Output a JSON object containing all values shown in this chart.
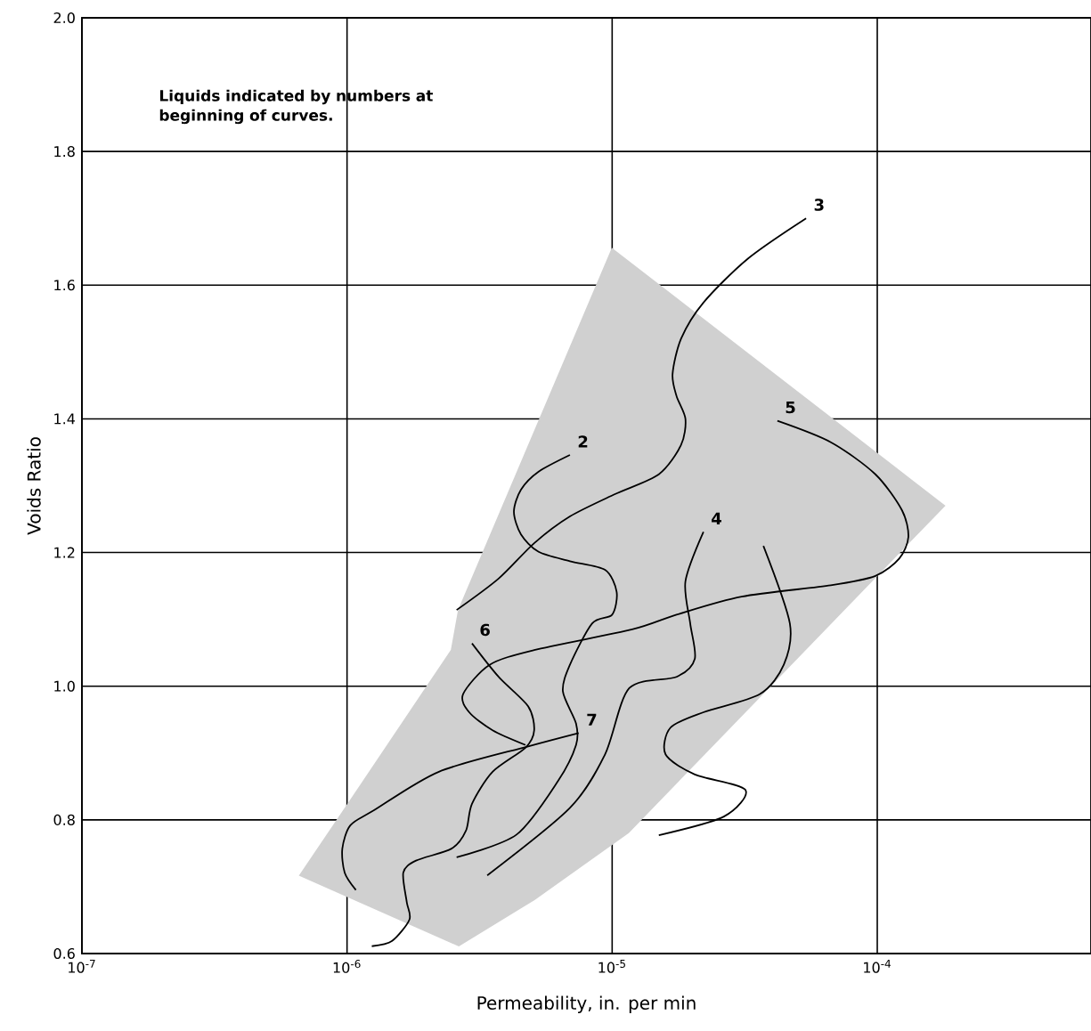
{
  "chart_data": {
    "type": "line",
    "xlabel": "Permeability, in. per min",
    "ylabel": "Voids Ratio",
    "annotations": [
      "Liquids indicated by numbers at beginning of curves."
    ],
    "log": "x",
    "grid": true,
    "marker": "none",
    "xlim": [
      1e-07,
      0.00064
    ],
    "xticks": [
      {
        "value": 1e-07,
        "label": "10$^{-7}$"
      },
      {
        "value": 1e-06,
        "label": "10$^{-6}$"
      },
      {
        "value": 1e-05,
        "label": "10$^{-5}$"
      },
      {
        "value": 0.0001,
        "label": "10$^{-4}$"
      }
    ],
    "ylim": [
      0.6,
      2.0
    ],
    "yticks": [
      {
        "value": 0.6,
        "label": "0.6"
      },
      {
        "value": 0.8,
        "label": "0.8"
      },
      {
        "value": 1.0,
        "label": "1.0"
      },
      {
        "value": 1.2,
        "label": "1.2"
      },
      {
        "value": 1.4,
        "label": "1.4"
      },
      {
        "value": 1.6,
        "label": "1.6"
      },
      {
        "value": 1.8,
        "label": "1.8"
      },
      {
        "value": 2.0,
        "label": "2.0"
      }
    ],
    "series": [
      {
        "type": "area",
        "color": "#d0d0d0",
        "x": [
          1e-05,
          0.000179,
          1.15e-05,
          9.08e-06,
          5.08e-06,
          2.64e-06,
          6.65e-07,
          1e-06,
          2.48e-06,
          2.64e-06
        ],
        "values": [
          1.654,
          1.27,
          0.781,
          0.752,
          0.681,
          0.612,
          0.717,
          0.821,
          1.054,
          1.114
        ]
      },
      {
        "name": "3",
        "color": "#000000",
        "x": [
          5.39e-05,
          3.26e-05,
          2.21e-05,
          1.82e-05,
          1.69e-05,
          1.75e-05,
          1.89e-05,
          1.82e-05,
          1.5e-05,
          1.02e-05,
          6.93e-06,
          5.08e-06,
          3.73e-06,
          2.59e-06
        ],
        "values": [
          1.7,
          1.64,
          1.574,
          1.52,
          1.467,
          1.434,
          1.4,
          1.361,
          1.317,
          1.287,
          1.254,
          1.214,
          1.161,
          1.114
        ]
      },
      {
        "name": "2",
        "color": "#000000",
        "x": [
          6.93e-06,
          5.28e-06,
          4.53e-06,
          4.26e-06,
          4.53e-06,
          5.28e-06,
          6.93e-06,
          9.4e-06,
          1.04e-05,
          1e-05,
          8.41e-06,
          6.93e-06,
          6.52e-06,
          7.31e-06,
          7.31e-06,
          6.27e-06,
          4.36e-06,
          2.59e-06
        ],
        "values": [
          1.346,
          1.321,
          1.294,
          1.261,
          1.227,
          1.201,
          1.187,
          1.174,
          1.141,
          1.107,
          1.094,
          1.032,
          0.992,
          0.944,
          0.912,
          0.859,
          0.778,
          0.744
        ]
      },
      {
        "name": "5",
        "color": "#000000",
        "x": [
          4.2e-05,
          6.68e-05,
          9.84e-05,
          0.000124,
          0.000131,
          0.000121,
          9.84e-05,
          6.68e-05,
          3.08e-05,
          1.75e-05,
          1.19e-05,
          5.08e-06,
          3.45e-06,
          2.74e-06,
          2.89e-06,
          3.54e-06,
          4.71e-06
        ],
        "values": [
          1.397,
          1.365,
          1.317,
          1.263,
          1.223,
          1.191,
          1.165,
          1.151,
          1.134,
          1.107,
          1.085,
          1.054,
          1.032,
          0.988,
          0.961,
          0.934,
          0.912
        ]
      },
      {
        "name": "4",
        "color": "#000000",
        "x": [
          2.21e-05,
          1.89e-05,
          1.97e-05,
          2.05e-05,
          1.75e-05,
          1.16e-05,
          9.4e-06,
          6.93e-06,
          3.38e-06
        ],
        "values": [
          1.231,
          1.157,
          1.094,
          1.041,
          1.014,
          0.997,
          0.898,
          0.818,
          0.717
        ]
      },
      {
        "name": "6",
        "color": "#000000",
        "x": [
          2.96e-06,
          3.73e-06,
          4.82e-06,
          5.08e-06,
          4.71e-06,
          3.54e-06,
          2.96e-06,
          2.81e-06,
          2.48e-06,
          1.82e-06,
          1.63e-06,
          1.68e-06,
          1.72e-06,
          1.48e-06,
          1.24e-06
        ],
        "values": [
          1.064,
          1.014,
          0.97,
          0.934,
          0.908,
          0.872,
          0.824,
          0.784,
          0.757,
          0.739,
          0.721,
          0.677,
          0.651,
          0.619,
          0.611
        ]
      },
      {
        "name": "7",
        "color": "#000000",
        "x": [
          7.48e-06,
          4.82e-06,
          2.22e-06,
          1.26e-06,
          1.03e-06,
          9.6e-07,
          9.8e-07,
          1.08e-06
        ],
        "values": [
          0.93,
          0.91,
          0.872,
          0.814,
          0.792,
          0.757,
          0.721,
          0.695
        ]
      },
      {
        "color": "#000000",
        "x": [
          3.72e-05,
          4.68e-05,
          4.44e-05,
          3.6e-05,
          2.21e-05,
          1.66e-05,
          1.59e-05,
          2.05e-05,
          3.18e-05,
          2.64e-05,
          1.5e-05
        ],
        "values": [
          1.21,
          1.094,
          1.032,
          0.988,
          0.961,
          0.938,
          0.898,
          0.868,
          0.845,
          0.805,
          0.777
        ]
      }
    ]
  }
}
